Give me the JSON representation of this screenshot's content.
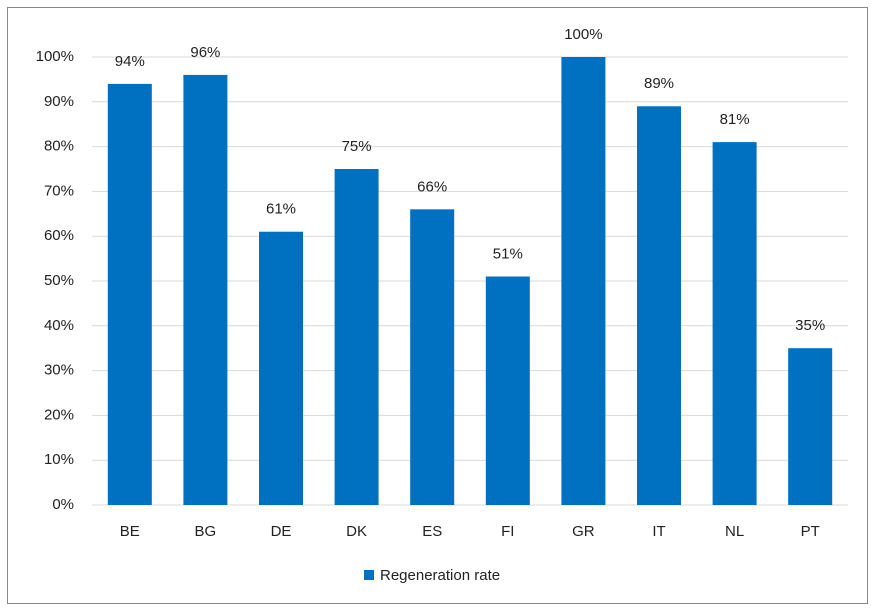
{
  "chart_data": {
    "type": "bar",
    "categories": [
      "BE",
      "BG",
      "DE",
      "DK",
      "ES",
      "FI",
      "GR",
      "IT",
      "NL",
      "PT"
    ],
    "series": [
      {
        "name": "Regeneration rate",
        "color": "#0070c0",
        "values": [
          94,
          96,
          61,
          75,
          66,
          51,
          100,
          89,
          81,
          35
        ],
        "value_labels": [
          "94%",
          "96%",
          "61%",
          "75%",
          "66%",
          "51%",
          "100%",
          "89%",
          "81%",
          "35%"
        ]
      }
    ],
    "ylim": [
      0,
      100
    ],
    "yticks": [
      {
        "value": 0,
        "label": "0%"
      },
      {
        "value": 10,
        "label": "10%"
      },
      {
        "value": 20,
        "label": "20%"
      },
      {
        "value": 30,
        "label": "30%"
      },
      {
        "value": 40,
        "label": "40%"
      },
      {
        "value": 50,
        "label": "50%"
      },
      {
        "value": 60,
        "label": "60%"
      },
      {
        "value": 70,
        "label": "70%"
      },
      {
        "value": 80,
        "label": "80%"
      },
      {
        "value": 90,
        "label": "90%"
      },
      {
        "value": 100,
        "label": "100%"
      }
    ],
    "grid": true,
    "legend": "bottom"
  }
}
